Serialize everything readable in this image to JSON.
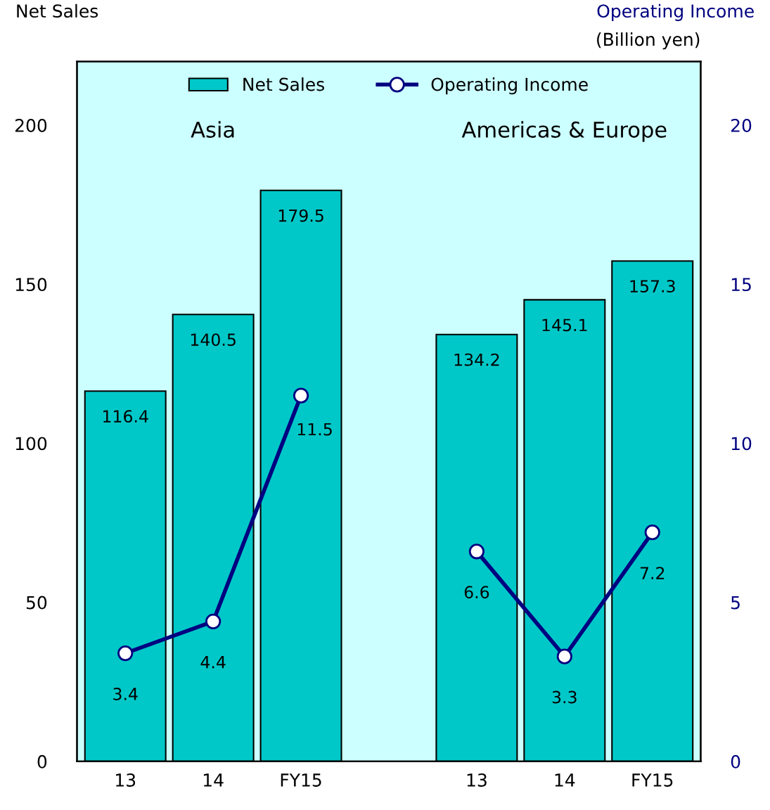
{
  "chart_data": {
    "type": "bar",
    "categories": [
      "13",
      "14",
      "FY15",
      null,
      "13",
      "14",
      "FY15"
    ],
    "series": [
      {
        "name": "Net Sales",
        "color": "#00c8c8",
        "values": [
          116.4,
          140.5,
          179.5,
          null,
          134.2,
          145.1,
          157.3
        ]
      },
      {
        "name": "Operating Income",
        "type": "line",
        "axis": "y2",
        "color": "#000080",
        "marker": "circle",
        "values": [
          3.4,
          4.4,
          11.5,
          null,
          6.6,
          3.3,
          7.2
        ]
      }
    ],
    "ylabel": "Net Sales",
    "y2label": "Operating Income",
    "annotations": [
      "(Billion yen)",
      "Asia",
      "Americas & Europe"
    ],
    "ylim": [
      0,
      220
    ],
    "yticks": [
      0,
      50,
      100,
      150,
      200
    ],
    "y2lim": [
      0,
      22
    ],
    "y2ticks": [
      0,
      5,
      10,
      15,
      20
    ],
    "bands": [
      {
        "axis": "y",
        "from": 0,
        "to": 220,
        "color": "#ccffff"
      }
    ],
    "data_labels": true,
    "legend": "top",
    "grid": false
  }
}
